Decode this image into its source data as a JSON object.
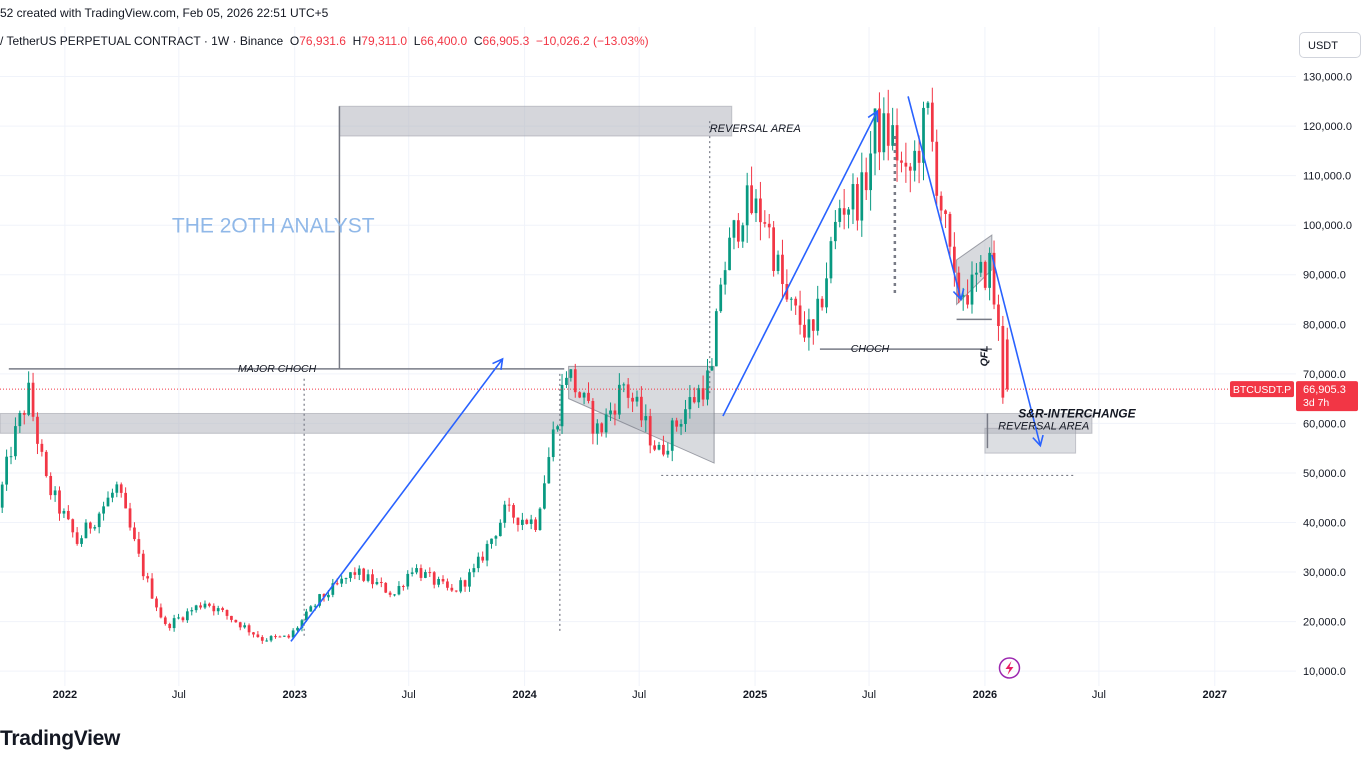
{
  "caption": "52 created with TradingView.com, Feb 05, 2026 22:51 UTC+5",
  "legend": {
    "symbol": "/ TetherUS PERPETUAL CONTRACT · 1W · Binance",
    "o_label": "O",
    "o_value": "76,931.6",
    "h_label": "H",
    "h_value": "79,311.0",
    "l_label": "L",
    "l_value": "66,400.0",
    "c_label": "C",
    "c_value": "66,905.3",
    "change": "−10,026.2 (−13.03%)"
  },
  "currency": "USDT",
  "brand": "TradingView",
  "colors": {
    "up": "#089981",
    "down": "#f23645",
    "annotation_blue": "#2962ff",
    "watermark": "#90b8e8",
    "zone_gray": "#b2b5be"
  },
  "chart_data": {
    "type": "candlestick",
    "symbol": "BTCUSDT.P",
    "interval": "1W",
    "y_scale": "linear",
    "ylim": [
      7000,
      140000
    ],
    "y_ticks": [
      10000,
      20000,
      30000,
      40000,
      50000,
      60000,
      70000,
      80000,
      90000,
      100000,
      110000,
      120000,
      130000
    ],
    "y_tick_labels": [
      "10,000.0",
      "20,000.0",
      "30,000.0",
      "40,000.0",
      "50,000.0",
      "60,000.0",
      "70,000.0",
      "80,000.0",
      "90,000.0",
      "100,000.0",
      "110,000.0",
      "120,000.0",
      "130,000.0"
    ],
    "x_range": [
      "2021-09-20",
      "2027-05-10"
    ],
    "x_ticks": [
      {
        "date": "2022-01-01",
        "label": "2022",
        "bold": true
      },
      {
        "date": "2022-07-01",
        "label": "Jul",
        "bold": false
      },
      {
        "date": "2023-01-01",
        "label": "2023",
        "bold": true
      },
      {
        "date": "2023-07-01",
        "label": "Jul",
        "bold": false
      },
      {
        "date": "2024-01-01",
        "label": "2024",
        "bold": true
      },
      {
        "date": "2024-07-01",
        "label": "Jul",
        "bold": false
      },
      {
        "date": "2025-01-01",
        "label": "2025",
        "bold": true
      },
      {
        "date": "2025-07-01",
        "label": "Jul",
        "bold": false
      },
      {
        "date": "2026-01-01",
        "label": "2026",
        "bold": true
      },
      {
        "date": "2026-07-01",
        "label": "Jul",
        "bold": false
      },
      {
        "date": "2027-01-01",
        "label": "2027",
        "bold": true
      }
    ],
    "grid": true,
    "price_path": [
      [
        "2021-09-20",
        43000
      ],
      [
        "2021-10-11",
        55000
      ],
      [
        "2021-11-08",
        66000
      ],
      [
        "2021-12-06",
        48000
      ],
      [
        "2022-01-24",
        36000
      ],
      [
        "2022-03-28",
        47000
      ],
      [
        "2022-05-09",
        30000
      ],
      [
        "2022-06-13",
        19000
      ],
      [
        "2022-08-15",
        24000
      ],
      [
        "2022-10-10",
        19500
      ],
      [
        "2022-11-14",
        16500
      ],
      [
        "2022-12-26",
        16800
      ],
      [
        "2023-02-13",
        24500
      ],
      [
        "2023-04-10",
        30000
      ],
      [
        "2023-06-12",
        25500
      ],
      [
        "2023-07-10",
        31000
      ],
      [
        "2023-09-11",
        25800
      ],
      [
        "2023-10-16",
        30000
      ],
      [
        "2023-12-04",
        42000
      ],
      [
        "2024-01-22",
        40000
      ],
      [
        "2024-03-11",
        71000
      ],
      [
        "2024-05-01",
        58000
      ],
      [
        "2024-06-10",
        68000
      ],
      [
        "2024-08-05",
        54000
      ],
      [
        "2024-09-16",
        63000
      ],
      [
        "2024-10-28",
        70000
      ],
      [
        "2024-11-11",
        89000
      ],
      [
        "2024-12-16",
        104000
      ],
      [
        "2025-01-20",
        102000
      ],
      [
        "2025-02-24",
        84000
      ],
      [
        "2025-04-07",
        77000
      ],
      [
        "2025-05-19",
        104000
      ],
      [
        "2025-06-23",
        106000
      ],
      [
        "2025-07-14",
        119000
      ],
      [
        "2025-08-11",
        118000
      ],
      [
        "2025-09-01",
        108000
      ],
      [
        "2025-10-06",
        122000
      ],
      [
        "2025-10-20",
        110000
      ],
      [
        "2025-11-17",
        87000
      ],
      [
        "2025-12-15",
        87000
      ],
      [
        "2026-01-12",
        92000
      ],
      [
        "2026-01-26",
        78000
      ],
      [
        "2026-02-02",
        66905
      ]
    ],
    "last_price": {
      "label": "BTCUSDT.P",
      "value": "66,905.3",
      "countdown": "3d 7h",
      "price": 66905.3
    },
    "annotations": [
      {
        "kind": "text",
        "text": "THE 2OTH ANALYST"
      },
      {
        "kind": "level",
        "text": "MAJOR CHOCH",
        "price": 71000
      },
      {
        "kind": "zone",
        "text": "REVERSAL AREA",
        "price_top": 124000,
        "price_bottom": 118000
      },
      {
        "kind": "zone",
        "text": "S&R-INTERCHANGE",
        "price_top": 62000,
        "price_bottom": 58000
      },
      {
        "kind": "zone",
        "text": "REVERSAL AREA",
        "price_top": 59000,
        "price_bottom": 54000
      },
      {
        "kind": "level",
        "text": "CHOCH",
        "price": 75000
      },
      {
        "kind": "label",
        "text": "QFL"
      }
    ]
  }
}
